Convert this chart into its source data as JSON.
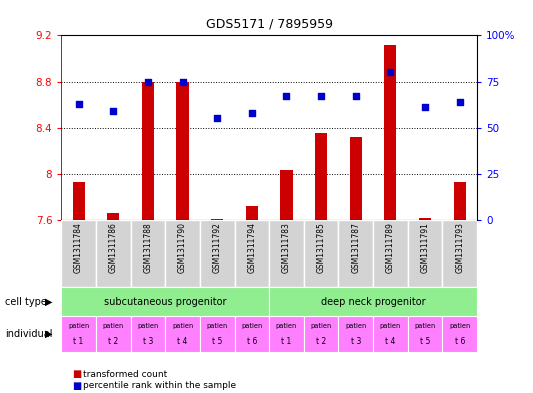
{
  "title": "GDS5171 / 7895959",
  "gsm_labels": [
    "GSM1311784",
    "GSM1311786",
    "GSM1311788",
    "GSM1311790",
    "GSM1311792",
    "GSM1311794",
    "GSM1311783",
    "GSM1311785",
    "GSM1311787",
    "GSM1311789",
    "GSM1311791",
    "GSM1311793"
  ],
  "red_values": [
    7.93,
    7.66,
    8.8,
    8.8,
    7.61,
    7.72,
    8.03,
    8.35,
    8.32,
    9.12,
    7.62,
    7.93
  ],
  "blue_values": [
    63,
    59,
    75,
    75,
    55,
    58,
    67,
    67,
    67,
    80,
    61,
    64
  ],
  "ylim_left": [
    7.6,
    9.2
  ],
  "ylim_right": [
    0,
    100
  ],
  "yticks_left": [
    7.6,
    8.0,
    8.4,
    8.8,
    9.2
  ],
  "ytick_labels_left": [
    "7.6",
    "8",
    "8.4",
    "8.8",
    "9.2"
  ],
  "yticks_right": [
    0,
    25,
    50,
    75,
    100
  ],
  "ytick_labels_right": [
    "0",
    "25",
    "50",
    "75",
    "100%"
  ],
  "cell_type_labels": [
    "subcutaneous progenitor",
    "deep neck progenitor"
  ],
  "individual_labels": [
    "t 1",
    "t 2",
    "t 3",
    "t 4",
    "t 5",
    "t 6",
    "t 1",
    "t 2",
    "t 3",
    "t 4",
    "t 5",
    "t 6"
  ],
  "cell_type_color": "#90EE90",
  "individual_color": "#FF80FF",
  "gsm_bg_color": "#D3D3D3",
  "bar_color": "#CC0000",
  "dot_color": "#0000CC",
  "legend_red": "transformed count",
  "legend_blue": "percentile rank within the sample",
  "cell_type_label": "cell type",
  "individual_label": "individual",
  "bar_width": 0.35
}
